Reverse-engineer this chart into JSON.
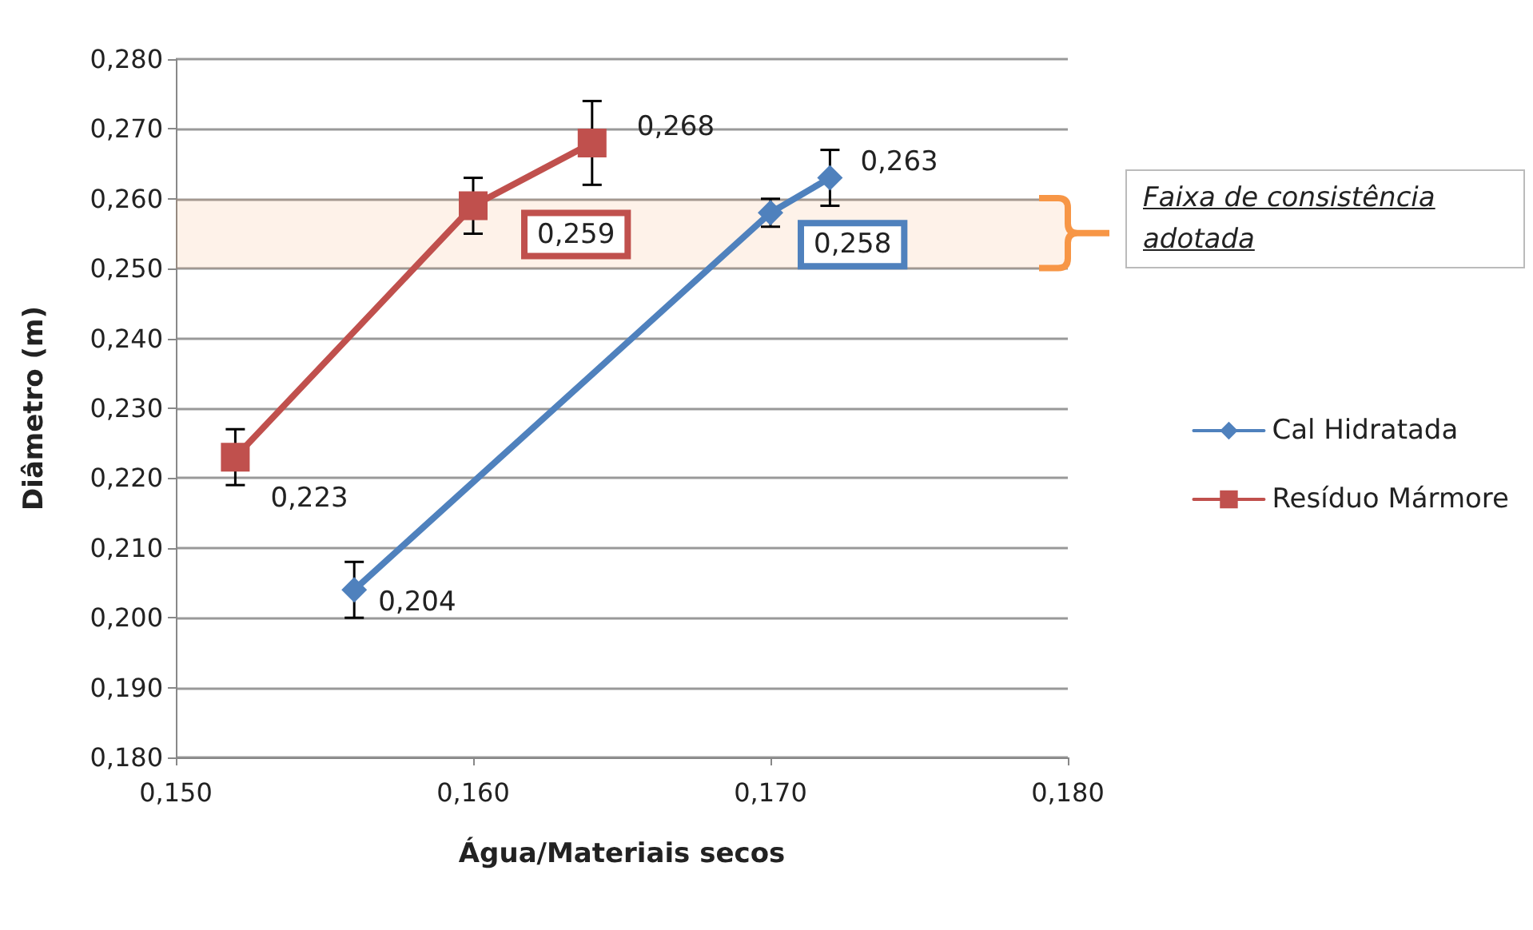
{
  "chart_data": {
    "type": "line",
    "xlabel": "Água/Materiais secos",
    "ylabel": "Diâmetro (m)",
    "series": [
      {
        "name": "Cal Hidratada",
        "color": "#4f81bd",
        "marker": "diamond",
        "x": [
          0.156,
          0.17,
          0.172
        ],
        "values": [
          0.204,
          0.258,
          0.263
        ],
        "errors": [
          0.004,
          0.002,
          0.004
        ],
        "value_labels": [
          "0,204",
          "0,258",
          "0,263"
        ]
      },
      {
        "name": "Resíduo Mármore",
        "color": "#c0504d",
        "marker": "square",
        "x": [
          0.152,
          0.16,
          0.164
        ],
        "values": [
          0.223,
          0.259,
          0.268
        ],
        "errors": [
          0.004,
          0.004,
          0.006
        ],
        "value_labels": [
          "0,223",
          "0,259",
          "0,268"
        ]
      }
    ],
    "xlim": [
      0.15,
      0.18
    ],
    "xticks": [
      {
        "value": 0.15,
        "label": "0,150"
      },
      {
        "value": 0.16,
        "label": "0,160"
      },
      {
        "value": 0.17,
        "label": "0,170"
      },
      {
        "value": 0.18,
        "label": "0,180"
      }
    ],
    "ylim": [
      0.18,
      0.28
    ],
    "yticks": [
      {
        "value": 0.18,
        "label": "0,180"
      },
      {
        "value": 0.19,
        "label": "0,190"
      },
      {
        "value": 0.2,
        "label": "0,200"
      },
      {
        "value": 0.21,
        "label": "0,210"
      },
      {
        "value": 0.22,
        "label": "0,220"
      },
      {
        "value": 0.23,
        "label": "0,230"
      },
      {
        "value": 0.24,
        "label": "0,240"
      },
      {
        "value": 0.25,
        "label": "0,250"
      },
      {
        "value": 0.26,
        "label": "0,260"
      },
      {
        "value": 0.27,
        "label": "0,270"
      },
      {
        "value": 0.28,
        "label": "0,280"
      }
    ],
    "bands": [
      {
        "axis": "y",
        "from": 0.25,
        "to": 0.26,
        "label": "Faixa de consistência adotada",
        "color": "#f79646"
      }
    ],
    "grid": "y",
    "legend": "right"
  }
}
